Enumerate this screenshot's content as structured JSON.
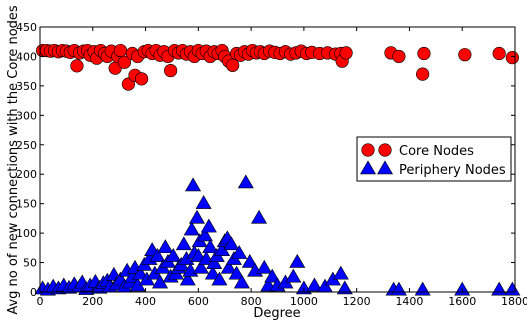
{
  "chart_data": {
    "type": "scatter",
    "title": "",
    "xlabel": "Degree",
    "ylabel": "Avg no of new connections with the Core nodes",
    "xlim": [
      0,
      1800
    ],
    "ylim": [
      0,
      450
    ],
    "xticks": [
      0,
      200,
      400,
      600,
      800,
      1000,
      1200,
      1400,
      1600,
      1800
    ],
    "yticks": [
      0,
      50,
      100,
      150,
      200,
      250,
      300,
      350,
      400,
      450
    ],
    "grid": false,
    "legend": {
      "placement": "center-right"
    },
    "series": [
      {
        "name": "Core Nodes",
        "marker": "circle",
        "color": "#ff0000",
        "points": [
          [
            10,
            410
          ],
          [
            25,
            410
          ],
          [
            40,
            409
          ],
          [
            55,
            410
          ],
          [
            70,
            408
          ],
          [
            85,
            410
          ],
          [
            100,
            409
          ],
          [
            115,
            407
          ],
          [
            130,
            410
          ],
          [
            140,
            384
          ],
          [
            150,
            406
          ],
          [
            165,
            409
          ],
          [
            180,
            410
          ],
          [
            190,
            402
          ],
          [
            205,
            408
          ],
          [
            215,
            397
          ],
          [
            230,
            410
          ],
          [
            245,
            405
          ],
          [
            255,
            400
          ],
          [
            270,
            409
          ],
          [
            285,
            380
          ],
          [
            295,
            400
          ],
          [
            305,
            410
          ],
          [
            320,
            390
          ],
          [
            335,
            353
          ],
          [
            350,
            405
          ],
          [
            360,
            368
          ],
          [
            370,
            400
          ],
          [
            385,
            362
          ],
          [
            395,
            408
          ],
          [
            410,
            410
          ],
          [
            425,
            405
          ],
          [
            440,
            410
          ],
          [
            455,
            402
          ],
          [
            470,
            408
          ],
          [
            485,
            400
          ],
          [
            495,
            376
          ],
          [
            510,
            410
          ],
          [
            525,
            406
          ],
          [
            540,
            410
          ],
          [
            555,
            404
          ],
          [
            570,
            408
          ],
          [
            585,
            400
          ],
          [
            600,
            410
          ],
          [
            615,
            405
          ],
          [
            630,
            409
          ],
          [
            645,
            400
          ],
          [
            660,
            408
          ],
          [
            675,
            405
          ],
          [
            690,
            410
          ],
          [
            700,
            400
          ],
          [
            715,
            392
          ],
          [
            730,
            385
          ],
          [
            745,
            405
          ],
          [
            760,
            402
          ],
          [
            775,
            408
          ],
          [
            790,
            404
          ],
          [
            805,
            410
          ],
          [
            820,
            406
          ],
          [
            835,
            408
          ],
          [
            850,
            405
          ],
          [
            870,
            409
          ],
          [
            890,
            407
          ],
          [
            910,
            405
          ],
          [
            930,
            408
          ],
          [
            950,
            404
          ],
          [
            970,
            406
          ],
          [
            990,
            409
          ],
          [
            1010,
            405
          ],
          [
            1030,
            407
          ],
          [
            1060,
            405
          ],
          [
            1090,
            406
          ],
          [
            1120,
            404
          ],
          [
            1140,
            405
          ],
          [
            1145,
            392
          ],
          [
            1160,
            406
          ],
          [
            1330,
            406
          ],
          [
            1360,
            400
          ],
          [
            1450,
            370
          ],
          [
            1455,
            405
          ],
          [
            1610,
            403
          ],
          [
            1740,
            405
          ],
          [
            1790,
            398
          ]
        ]
      },
      {
        "name": "Periphery Nodes",
        "marker": "triangle",
        "color": "#0000ff",
        "points": [
          [
            10,
            5
          ],
          [
            30,
            3
          ],
          [
            50,
            8
          ],
          [
            70,
            5
          ],
          [
            90,
            10
          ],
          [
            110,
            6
          ],
          [
            130,
            12
          ],
          [
            150,
            8
          ],
          [
            160,
            15
          ],
          [
            175,
            4
          ],
          [
            190,
            10
          ],
          [
            210,
            16
          ],
          [
            225,
            6
          ],
          [
            240,
            14
          ],
          [
            255,
            18
          ],
          [
            265,
            8
          ],
          [
            280,
            28
          ],
          [
            290,
            12
          ],
          [
            305,
            20
          ],
          [
            320,
            8
          ],
          [
            330,
            35
          ],
          [
            340,
            15
          ],
          [
            350,
            25
          ],
          [
            360,
            40
          ],
          [
            370,
            10
          ],
          [
            380,
            30
          ],
          [
            395,
            45
          ],
          [
            405,
            20
          ],
          [
            415,
            55
          ],
          [
            425,
            70
          ],
          [
            435,
            30
          ],
          [
            445,
            60
          ],
          [
            455,
            15
          ],
          [
            465,
            40
          ],
          [
            475,
            75
          ],
          [
            485,
            50
          ],
          [
            495,
            25
          ],
          [
            505,
            60
          ],
          [
            515,
            30
          ],
          [
            525,
            40
          ],
          [
            535,
            45
          ],
          [
            545,
            80
          ],
          [
            555,
            55
          ],
          [
            560,
            20
          ],
          [
            570,
            35
          ],
          [
            575,
            105
          ],
          [
            580,
            180
          ],
          [
            585,
            65
          ],
          [
            595,
            125
          ],
          [
            600,
            60
          ],
          [
            605,
            85
          ],
          [
            610,
            40
          ],
          [
            620,
            150
          ],
          [
            625,
            95
          ],
          [
            630,
            55
          ],
          [
            640,
            110
          ],
          [
            645,
            75
          ],
          [
            655,
            30
          ],
          [
            660,
            48
          ],
          [
            670,
            60
          ],
          [
            680,
            20
          ],
          [
            690,
            70
          ],
          [
            700,
            85
          ],
          [
            710,
            90
          ],
          [
            715,
            40
          ],
          [
            725,
            80
          ],
          [
            735,
            55
          ],
          [
            745,
            30
          ],
          [
            755,
            65
          ],
          [
            765,
            15
          ],
          [
            780,
            185
          ],
          [
            795,
            50
          ],
          [
            815,
            35
          ],
          [
            830,
            125
          ],
          [
            850,
            40
          ],
          [
            865,
            10
          ],
          [
            880,
            25
          ],
          [
            900,
            10
          ],
          [
            930,
            15
          ],
          [
            960,
            25
          ],
          [
            975,
            50
          ],
          [
            1000,
            5
          ],
          [
            1040,
            10
          ],
          [
            1080,
            8
          ],
          [
            1110,
            20
          ],
          [
            1140,
            30
          ],
          [
            1155,
            5
          ],
          [
            1340,
            3
          ],
          [
            1360,
            3
          ],
          [
            1450,
            3
          ],
          [
            1600,
            3
          ],
          [
            1740,
            3
          ],
          [
            1790,
            3
          ]
        ]
      }
    ]
  }
}
